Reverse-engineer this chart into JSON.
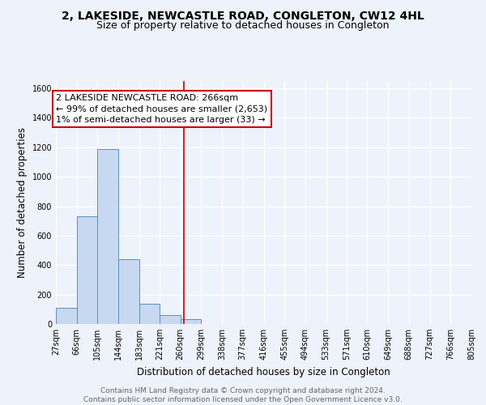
{
  "title": "2, LAKESIDE, NEWCASTLE ROAD, CONGLETON, CW12 4HL",
  "subtitle": "Size of property relative to detached houses in Congleton",
  "xlabel": "Distribution of detached houses by size in Congleton",
  "ylabel": "Number of detached properties",
  "footer_line1": "Contains HM Land Registry data © Crown copyright and database right 2024.",
  "footer_line2": "Contains public sector information licensed under the Open Government Licence v3.0.",
  "bin_edges": [
    27,
    66,
    105,
    144,
    183,
    221,
    260,
    299,
    338,
    377,
    416,
    455,
    494,
    533,
    571,
    610,
    649,
    688,
    727,
    766,
    805
  ],
  "bar_heights": [
    110,
    730,
    1190,
    440,
    140,
    60,
    35,
    0,
    0,
    0,
    0,
    0,
    0,
    0,
    0,
    0,
    0,
    0,
    0,
    0
  ],
  "bar_color": "#c6d9f0",
  "bar_edge_color": "#5a8fc0",
  "vline_x": 266,
  "vline_color": "#cc0000",
  "annotation_text": "2 LAKESIDE NEWCASTLE ROAD: 266sqm\n← 99% of detached houses are smaller (2,653)\n1% of semi-detached houses are larger (33) →",
  "annotation_box_edge_color": "#cc0000",
  "annotation_box_face_color": "#ffffff",
  "ylim": [
    0,
    1650
  ],
  "yticks": [
    0,
    200,
    400,
    600,
    800,
    1000,
    1200,
    1400,
    1600
  ],
  "bg_color": "#eef2fa",
  "plot_bg_color": "#eef2fa",
  "title_fontsize": 10,
  "subtitle_fontsize": 9,
  "axis_label_fontsize": 8.5,
  "tick_fontsize": 7,
  "footer_fontsize": 6.5,
  "annotation_fontsize": 8
}
